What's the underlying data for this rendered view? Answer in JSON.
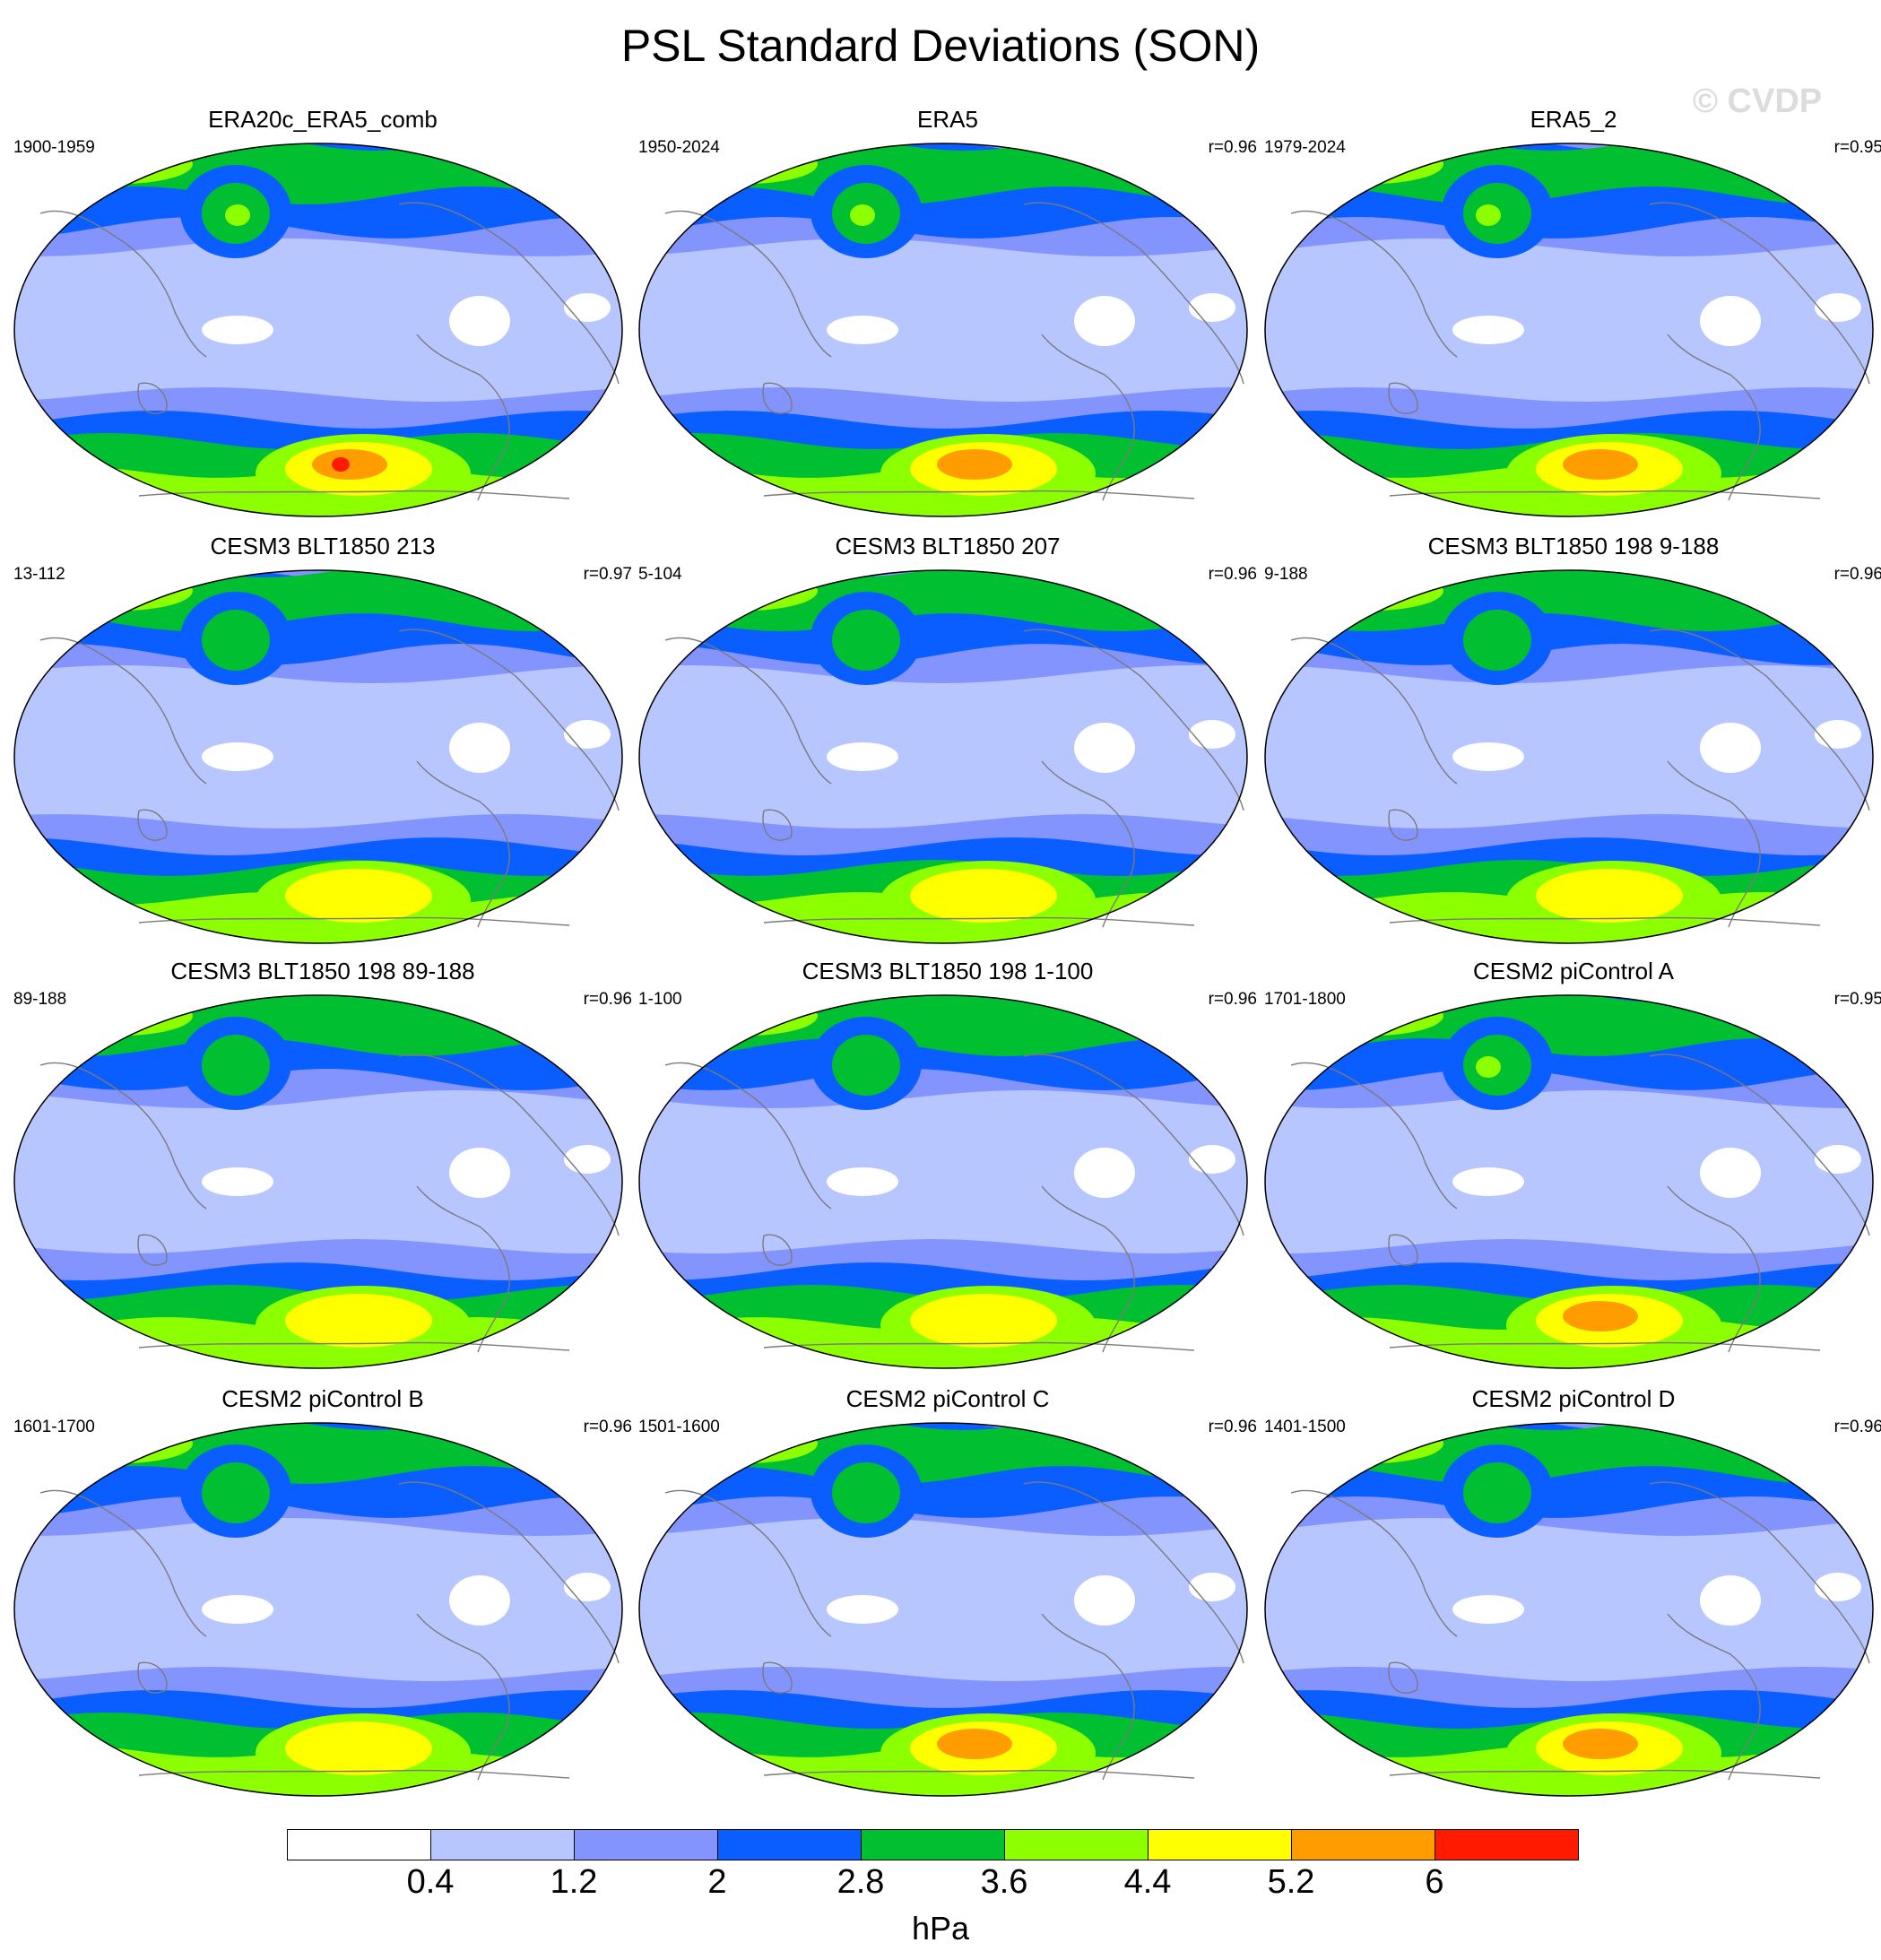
{
  "title": "PSL Standard Deviations (SON)",
  "watermark": "© CVDP",
  "units": "hPa",
  "colorbar": {
    "colors": [
      "#ffffff",
      "#b8c6ff",
      "#8494ff",
      "#0a5eff",
      "#00c032",
      "#8cff00",
      "#ffff00",
      "#ff9c00",
      "#ff1a00"
    ],
    "labels": [
      "0.4",
      "1.2",
      "2",
      "2.8",
      "3.6",
      "4.4",
      "5.2",
      "6"
    ]
  },
  "panels": [
    {
      "title": "ERA20c_ERA5_comb",
      "years": "1900-1959",
      "corr": "",
      "peak": 7
    },
    {
      "title": "ERA5",
      "years": "1950-2024",
      "corr": "r=0.96",
      "peak": 6
    },
    {
      "title": "ERA5_2",
      "years": "1979-2024",
      "corr": "r=0.95",
      "peak": 6
    },
    {
      "title": "CESM3 BLT1850 213",
      "years": "13-112",
      "corr": "r=0.97",
      "peak": 5
    },
    {
      "title": "CESM3 BLT1850 207",
      "years": "5-104",
      "corr": "r=0.96",
      "peak": 5
    },
    {
      "title": "CESM3 BLT1850 198 9-188",
      "years": "9-188",
      "corr": "r=0.96",
      "peak": 5
    },
    {
      "title": "CESM3 BLT1850 198 89-188",
      "years": "89-188",
      "corr": "r=0.96",
      "peak": 5
    },
    {
      "title": "CESM3 BLT1850 198 1-100",
      "years": "1-100",
      "corr": "r=0.96",
      "peak": 5
    },
    {
      "title": "CESM2 piControl A",
      "years": "1701-1800",
      "corr": "r=0.95",
      "peak": 6
    },
    {
      "title": "CESM2 piControl B",
      "years": "1601-1700",
      "corr": "r=0.96",
      "peak": 5
    },
    {
      "title": "CESM2 piControl C",
      "years": "1501-1600",
      "corr": "r=0.96",
      "peak": 6
    },
    {
      "title": "CESM2 piControl D",
      "years": "1401-1500",
      "corr": "r=0.96",
      "peak": 6
    }
  ]
}
